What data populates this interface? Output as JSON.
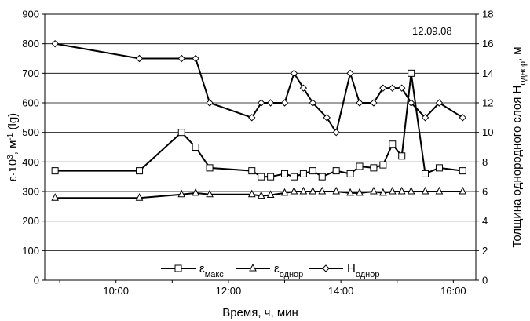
{
  "chart_data": {
    "type": "line",
    "annotation": "12.09.08",
    "xlabel": "Время, ч, мин",
    "ylabel_left": {
      "base": "ε·10",
      "exp1": "3",
      "mid": ", м",
      "exp2": "-1",
      "tail": " (lg)"
    },
    "ylabel_right": {
      "base": "Толщина однородного слоя H",
      "sub": "однор",
      "tail": ", м"
    },
    "x_range": [
      "08:44",
      "16:24"
    ],
    "x_ticks": [
      "10:00",
      "12:00",
      "14:00",
      "16:00"
    ],
    "y_left_range": [
      0,
      900
    ],
    "y_left_ticks": [
      "0",
      "100",
      "200",
      "300",
      "400",
      "500",
      "600",
      "700",
      "800",
      "900"
    ],
    "y_right_range": [
      0,
      18
    ],
    "y_right_ticks": [
      "0",
      "2",
      "4",
      "6",
      "8",
      "10",
      "12",
      "14",
      "16",
      "18"
    ],
    "grid": "horizontal",
    "legend_position": "bottom-center",
    "series": [
      {
        "name": "εмакс",
        "name_base": "ε",
        "name_sub": "макс",
        "marker": "square",
        "axis": "left",
        "color": "#000000",
        "points": [
          [
            "08:55",
            370
          ],
          [
            "10:25",
            370
          ],
          [
            "11:10",
            500
          ],
          [
            "11:25",
            450
          ],
          [
            "11:40",
            380
          ],
          [
            "12:25",
            370
          ],
          [
            "12:35",
            350
          ],
          [
            "12:45",
            350
          ],
          [
            "13:00",
            360
          ],
          [
            "13:10",
            350
          ],
          [
            "13:20",
            360
          ],
          [
            "13:30",
            370
          ],
          [
            "13:40",
            350
          ],
          [
            "13:55",
            370
          ],
          [
            "14:10",
            360
          ],
          [
            "14:20",
            385
          ],
          [
            "14:35",
            380
          ],
          [
            "14:45",
            390
          ],
          [
            "14:55",
            460
          ],
          [
            "15:05",
            420
          ],
          [
            "15:15",
            700
          ],
          [
            "15:30",
            360
          ],
          [
            "15:45",
            380
          ],
          [
            "16:10",
            370
          ]
        ]
      },
      {
        "name": "εоднор",
        "name_base": "ε",
        "name_sub": "однор",
        "marker": "triangle",
        "axis": "left",
        "color": "#000000",
        "points": [
          [
            "08:55",
            278
          ],
          [
            "10:25",
            278
          ],
          [
            "11:10",
            290
          ],
          [
            "11:25",
            295
          ],
          [
            "11:40",
            290
          ],
          [
            "12:25",
            290
          ],
          [
            "12:35",
            285
          ],
          [
            "12:45",
            288
          ],
          [
            "13:00",
            295
          ],
          [
            "13:10",
            300
          ],
          [
            "13:20",
            300
          ],
          [
            "13:30",
            300
          ],
          [
            "13:40",
            300
          ],
          [
            "13:55",
            300
          ],
          [
            "14:10",
            295
          ],
          [
            "14:20",
            295
          ],
          [
            "14:35",
            300
          ],
          [
            "14:45",
            295
          ],
          [
            "14:55",
            300
          ],
          [
            "15:05",
            300
          ],
          [
            "15:15",
            300
          ],
          [
            "15:30",
            300
          ],
          [
            "15:45",
            300
          ],
          [
            "16:10",
            300
          ]
        ]
      },
      {
        "name": "Hоднор",
        "name_base": "H",
        "name_sub": "однор",
        "marker": "diamond",
        "axis": "right",
        "color": "#000000",
        "points": [
          [
            "08:55",
            16
          ],
          [
            "10:25",
            15
          ],
          [
            "11:10",
            15
          ],
          [
            "11:25",
            15
          ],
          [
            "11:40",
            12
          ],
          [
            "12:25",
            11
          ],
          [
            "12:35",
            12
          ],
          [
            "12:45",
            12
          ],
          [
            "13:00",
            12
          ],
          [
            "13:10",
            14
          ],
          [
            "13:20",
            13
          ],
          [
            "13:30",
            12
          ],
          [
            "13:45",
            11
          ],
          [
            "13:55",
            10
          ],
          [
            "14:10",
            14
          ],
          [
            "14:20",
            12
          ],
          [
            "14:35",
            12
          ],
          [
            "14:45",
            13
          ],
          [
            "14:55",
            13
          ],
          [
            "15:05",
            13
          ],
          [
            "15:15",
            12
          ],
          [
            "15:30",
            11
          ],
          [
            "15:45",
            12
          ],
          [
            "16:10",
            11
          ]
        ]
      }
    ]
  }
}
